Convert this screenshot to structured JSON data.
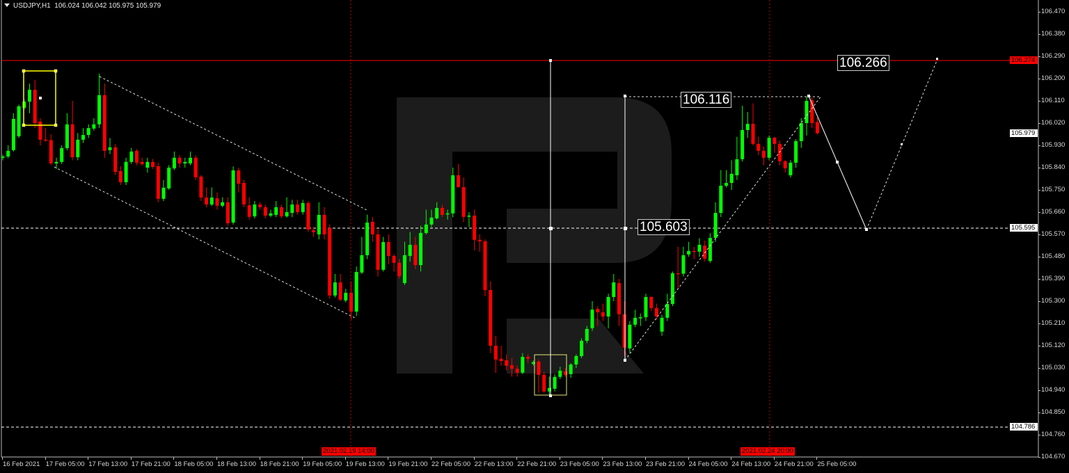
{
  "header": {
    "symbol": "USDJPY,H1",
    "ohlc": "106.024 106.042 105.975 105.979"
  },
  "colors": {
    "bull": "#00ff00",
    "bear": "#ff0000",
    "background": "#000000",
    "watermark": "#1c1c1c",
    "level_line": "#ff0000",
    "box": "#ffff00"
  },
  "price_axis": {
    "ticks": [
      "106.470",
      "106.380",
      "106.290",
      "106.200",
      "106.110",
      "106.020",
      "105.930",
      "105.840",
      "105.750",
      "105.660",
      "105.570",
      "105.480",
      "105.390",
      "105.300",
      "105.210",
      "105.120",
      "105.030",
      "104.940",
      "104.850",
      "104.760",
      "104.670"
    ],
    "markers": {
      "resistance": "106.274",
      "bid": "105.979",
      "support": "105.595",
      "low_level": "104.786"
    }
  },
  "time_axis": {
    "ticks": [
      "16 Feb 2021",
      "17 Feb 05:00",
      "17 Feb 13:00",
      "17 Feb 21:00",
      "18 Feb 05:00",
      "18 Feb 13:00",
      "18 Feb 21:00",
      "19 Feb 05:00",
      "19 Feb 13:00",
      "19 Feb 21:00",
      "22 Feb 05:00",
      "22 Feb 13:00",
      "22 Feb 21:00",
      "23 Feb 05:00",
      "23 Feb 13:00",
      "23 Feb 21:00",
      "24 Feb 05:00",
      "24 Feb 13:00",
      "24 Feb 21:00",
      "25 Feb 05:00"
    ],
    "highlighted": [
      "2021.02.19 14:00",
      "2021.02.24 20:00"
    ]
  },
  "annotations": {
    "target_high": "106.266",
    "top_level": "106.116",
    "mid_level": "105.603"
  },
  "chart_data": {
    "type": "candlestick",
    "title": "USDJPY,H1",
    "ylim": [
      104.67,
      106.47
    ],
    "fields": [
      "open",
      "high",
      "low",
      "close"
    ],
    "candles": [
      [
        105.88,
        105.892,
        105.87,
        105.885
      ],
      [
        105.885,
        105.93,
        105.878,
        105.908
      ],
      [
        105.911,
        106.06,
        105.905,
        106.037
      ],
      [
        105.967,
        106.095,
        105.96,
        106.088
      ],
      [
        106.082,
        106.115,
        106.075,
        106.107
      ],
      [
        106.107,
        106.18,
        106.06,
        106.155
      ],
      [
        106.155,
        106.195,
        106.0,
        106.02
      ],
      [
        106.026,
        106.04,
        105.93,
        105.953
      ],
      [
        105.953,
        106.0,
        105.945,
        105.951
      ],
      [
        105.951,
        105.975,
        105.85,
        105.857
      ],
      [
        105.857,
        105.88,
        105.835,
        105.863
      ],
      [
        105.863,
        105.93,
        105.855,
        105.919
      ],
      [
        105.919,
        106.06,
        105.91,
        106.015
      ],
      [
        106.015,
        106.11,
        105.87,
        105.882
      ],
      [
        105.882,
        105.98,
        105.87,
        105.953
      ],
      [
        105.953,
        106.0,
        105.94,
        105.972
      ],
      [
        105.972,
        106.015,
        105.96,
        106.0
      ],
      [
        105.998,
        106.04,
        105.99,
        106.015
      ],
      [
        106.015,
        106.22,
        106.0,
        106.133
      ],
      [
        106.133,
        106.18,
        105.88,
        105.908
      ],
      [
        105.911,
        105.96,
        105.895,
        105.922
      ],
      [
        105.922,
        105.935,
        105.81,
        105.823
      ],
      [
        105.826,
        105.845,
        105.77,
        105.781
      ],
      [
        105.781,
        105.88,
        105.77,
        105.863
      ],
      [
        105.863,
        105.92,
        105.855,
        105.905
      ],
      [
        105.908,
        105.915,
        105.85,
        105.86
      ],
      [
        105.863,
        105.88,
        105.848,
        105.854
      ],
      [
        105.84,
        105.88,
        105.82,
        105.863
      ],
      [
        105.863,
        105.875,
        105.835,
        105.843
      ],
      [
        105.846,
        105.86,
        105.7,
        105.714
      ],
      [
        105.714,
        105.79,
        105.705,
        105.759
      ],
      [
        105.756,
        105.85,
        105.75,
        105.84
      ],
      [
        105.837,
        105.905,
        105.83,
        105.88
      ],
      [
        105.88,
        105.89,
        105.84,
        105.857
      ],
      [
        105.857,
        105.88,
        105.84,
        105.863
      ],
      [
        105.857,
        105.905,
        105.85,
        105.88
      ],
      [
        105.88,
        105.89,
        105.79,
        105.801
      ],
      [
        105.804,
        105.81,
        105.705,
        105.719
      ],
      [
        105.719,
        105.76,
        105.68,
        105.691
      ],
      [
        105.691,
        105.76,
        105.685,
        105.719
      ],
      [
        105.716,
        105.74,
        105.67,
        105.686
      ],
      [
        105.686,
        105.72,
        105.68,
        105.7
      ],
      [
        105.7,
        105.72,
        105.605,
        105.615
      ],
      [
        105.618,
        105.845,
        105.61,
        105.829
      ],
      [
        105.829,
        105.84,
        105.74,
        105.775
      ],
      [
        105.778,
        105.79,
        105.68,
        105.691
      ],
      [
        105.688,
        105.72,
        105.63,
        105.641
      ],
      [
        105.643,
        105.705,
        105.635,
        105.691
      ],
      [
        105.691,
        105.7,
        105.67,
        105.68
      ],
      [
        105.68,
        105.69,
        105.635,
        105.646
      ],
      [
        105.646,
        105.67,
        105.64,
        105.655
      ],
      [
        105.649,
        105.705,
        105.64,
        105.68
      ],
      [
        105.68,
        105.69,
        105.635,
        105.643
      ],
      [
        105.643,
        105.72,
        105.638,
        105.66
      ],
      [
        105.657,
        105.71,
        105.64,
        105.691
      ],
      [
        105.691,
        105.71,
        105.65,
        105.66
      ],
      [
        105.66,
        105.71,
        105.65,
        105.697
      ],
      [
        105.697,
        105.705,
        105.58,
        105.59
      ],
      [
        105.587,
        105.6,
        105.56,
        105.579
      ],
      [
        105.57,
        105.7,
        105.55,
        105.649
      ],
      [
        105.649,
        105.68,
        105.55,
        105.57
      ],
      [
        105.596,
        105.61,
        105.31,
        105.323
      ],
      [
        105.323,
        105.41,
        105.315,
        105.376
      ],
      [
        105.376,
        105.41,
        105.3,
        105.306
      ],
      [
        105.303,
        105.35,
        105.295,
        105.334
      ],
      [
        105.334,
        105.38,
        105.225,
        105.258
      ],
      [
        105.258,
        105.44,
        105.24,
        105.418
      ],
      [
        105.416,
        105.56,
        105.41,
        105.486
      ],
      [
        105.486,
        105.65,
        105.47,
        105.618
      ],
      [
        105.621,
        105.64,
        105.54,
        105.57
      ],
      [
        105.57,
        105.59,
        105.4,
        105.427
      ],
      [
        105.427,
        105.56,
        105.42,
        105.539
      ],
      [
        105.539,
        105.57,
        105.45,
        105.483
      ],
      [
        105.483,
        105.49,
        105.42,
        105.455
      ],
      [
        105.455,
        105.47,
        105.39,
        105.401
      ],
      [
        105.373,
        105.54,
        105.365,
        105.486
      ],
      [
        105.483,
        105.58,
        105.46,
        105.528
      ],
      [
        105.528,
        105.56,
        105.43,
        105.446
      ],
      [
        105.446,
        105.605,
        105.42,
        105.576
      ],
      [
        105.576,
        105.67,
        105.57,
        105.61
      ],
      [
        105.61,
        105.67,
        105.6,
        105.638
      ],
      [
        105.635,
        105.7,
        105.63,
        105.677
      ],
      [
        105.677,
        105.69,
        105.64,
        105.649
      ],
      [
        105.652,
        105.67,
        105.63,
        105.655
      ],
      [
        105.655,
        105.84,
        105.64,
        105.809
      ],
      [
        105.809,
        105.855,
        105.76,
        105.761
      ],
      [
        105.761,
        105.8,
        105.62,
        105.641
      ],
      [
        105.643,
        105.66,
        105.6,
        105.646
      ],
      [
        105.646,
        105.67,
        105.505,
        105.548
      ],
      [
        105.548,
        105.57,
        105.5,
        105.542
      ],
      [
        105.542,
        105.55,
        105.32,
        105.345
      ],
      [
        105.345,
        105.38,
        105.09,
        105.12
      ],
      [
        105.12,
        105.16,
        105.01,
        105.064
      ],
      [
        105.067,
        105.12,
        105.04,
        105.058
      ],
      [
        105.061,
        105.085,
        105.02,
        105.039
      ],
      [
        105.041,
        105.07,
        104.995,
        105.027
      ],
      [
        105.027,
        105.04,
        104.995,
        105.011
      ],
      [
        105.011,
        105.09,
        105.005,
        105.075
      ],
      [
        105.075,
        105.085,
        105.05,
        105.067
      ],
      [
        105.047,
        105.06,
        105.04,
        105.053
      ],
      [
        105.056,
        105.065,
        104.93,
        105.002
      ],
      [
        105.002,
        105.015,
        104.93,
        104.935
      ],
      [
        104.935,
        104.995,
        104.92,
        104.949
      ],
      [
        104.946,
        105.005,
        104.935,
        104.994
      ],
      [
        104.994,
        105.035,
        104.985,
        105.019
      ],
      [
        105.016,
        105.03,
        104.995,
        105.002
      ],
      [
        105.005,
        105.05,
        104.99,
        105.044
      ],
      [
        105.044,
        105.085,
        105.03,
        105.078
      ],
      [
        105.078,
        105.15,
        105.07,
        105.14
      ],
      [
        105.14,
        105.2,
        105.13,
        105.188
      ],
      [
        105.191,
        105.3,
        105.18,
        105.266
      ],
      [
        105.269,
        105.28,
        105.2,
        105.255
      ],
      [
        105.255,
        105.29,
        105.22,
        105.238
      ],
      [
        105.238,
        105.33,
        105.19,
        105.317
      ],
      [
        105.317,
        105.41,
        105.3,
        105.376
      ],
      [
        105.373,
        105.39,
        105.2,
        105.247
      ],
      [
        105.247,
        105.3,
        105.08,
        105.112
      ],
      [
        105.109,
        105.22,
        105.09,
        105.205
      ],
      [
        105.205,
        105.265,
        105.195,
        105.233
      ],
      [
        105.233,
        105.25,
        105.2,
        105.235
      ],
      [
        105.235,
        105.33,
        105.22,
        105.317
      ],
      [
        105.317,
        105.32,
        105.26,
        105.272
      ],
      [
        105.272,
        105.29,
        105.225,
        105.238
      ],
      [
        105.177,
        105.245,
        105.16,
        105.233
      ],
      [
        105.233,
        105.33,
        105.22,
        105.289
      ],
      [
        105.289,
        105.42,
        105.28,
        105.413
      ],
      [
        105.413,
        105.52,
        105.35,
        105.411
      ],
      [
        105.411,
        105.52,
        105.4,
        105.486
      ],
      [
        105.489,
        105.54,
        105.48,
        105.503
      ],
      [
        105.503,
        105.52,
        105.47,
        105.5
      ],
      [
        105.5,
        105.555,
        105.48,
        105.528
      ],
      [
        105.525,
        105.545,
        105.46,
        105.472
      ],
      [
        105.463,
        105.575,
        105.455,
        105.556
      ],
      [
        105.556,
        105.7,
        105.54,
        105.657
      ],
      [
        105.657,
        105.83,
        105.64,
        105.767
      ],
      [
        105.767,
        105.83,
        105.76,
        105.778
      ],
      [
        105.778,
        105.87,
        105.75,
        105.815
      ],
      [
        105.809,
        105.965,
        105.79,
        105.874
      ],
      [
        105.874,
        106.09,
        105.865,
        105.992
      ],
      [
        105.992,
        106.065,
        105.96,
        106.017
      ],
      [
        106.017,
        106.1,
        105.93,
        105.936
      ],
      [
        105.936,
        105.965,
        105.89,
        105.908
      ],
      [
        105.908,
        105.925,
        105.85,
        105.88
      ],
      [
        105.88,
        105.97,
        105.87,
        105.961
      ],
      [
        105.961,
        105.965,
        105.9,
        105.936
      ],
      [
        105.936,
        105.95,
        105.85,
        105.866
      ],
      [
        105.866,
        105.87,
        105.82,
        105.837
      ],
      [
        105.809,
        105.87,
        105.8,
        105.86
      ],
      [
        105.86,
        105.955,
        105.84,
        105.947
      ],
      [
        105.947,
        106.04,
        105.92,
        106.02
      ],
      [
        106.02,
        106.125,
        105.97,
        106.11
      ],
      [
        106.113,
        106.125,
        106.0,
        106.02
      ],
      [
        106.024,
        106.042,
        105.975,
        105.979
      ]
    ]
  }
}
